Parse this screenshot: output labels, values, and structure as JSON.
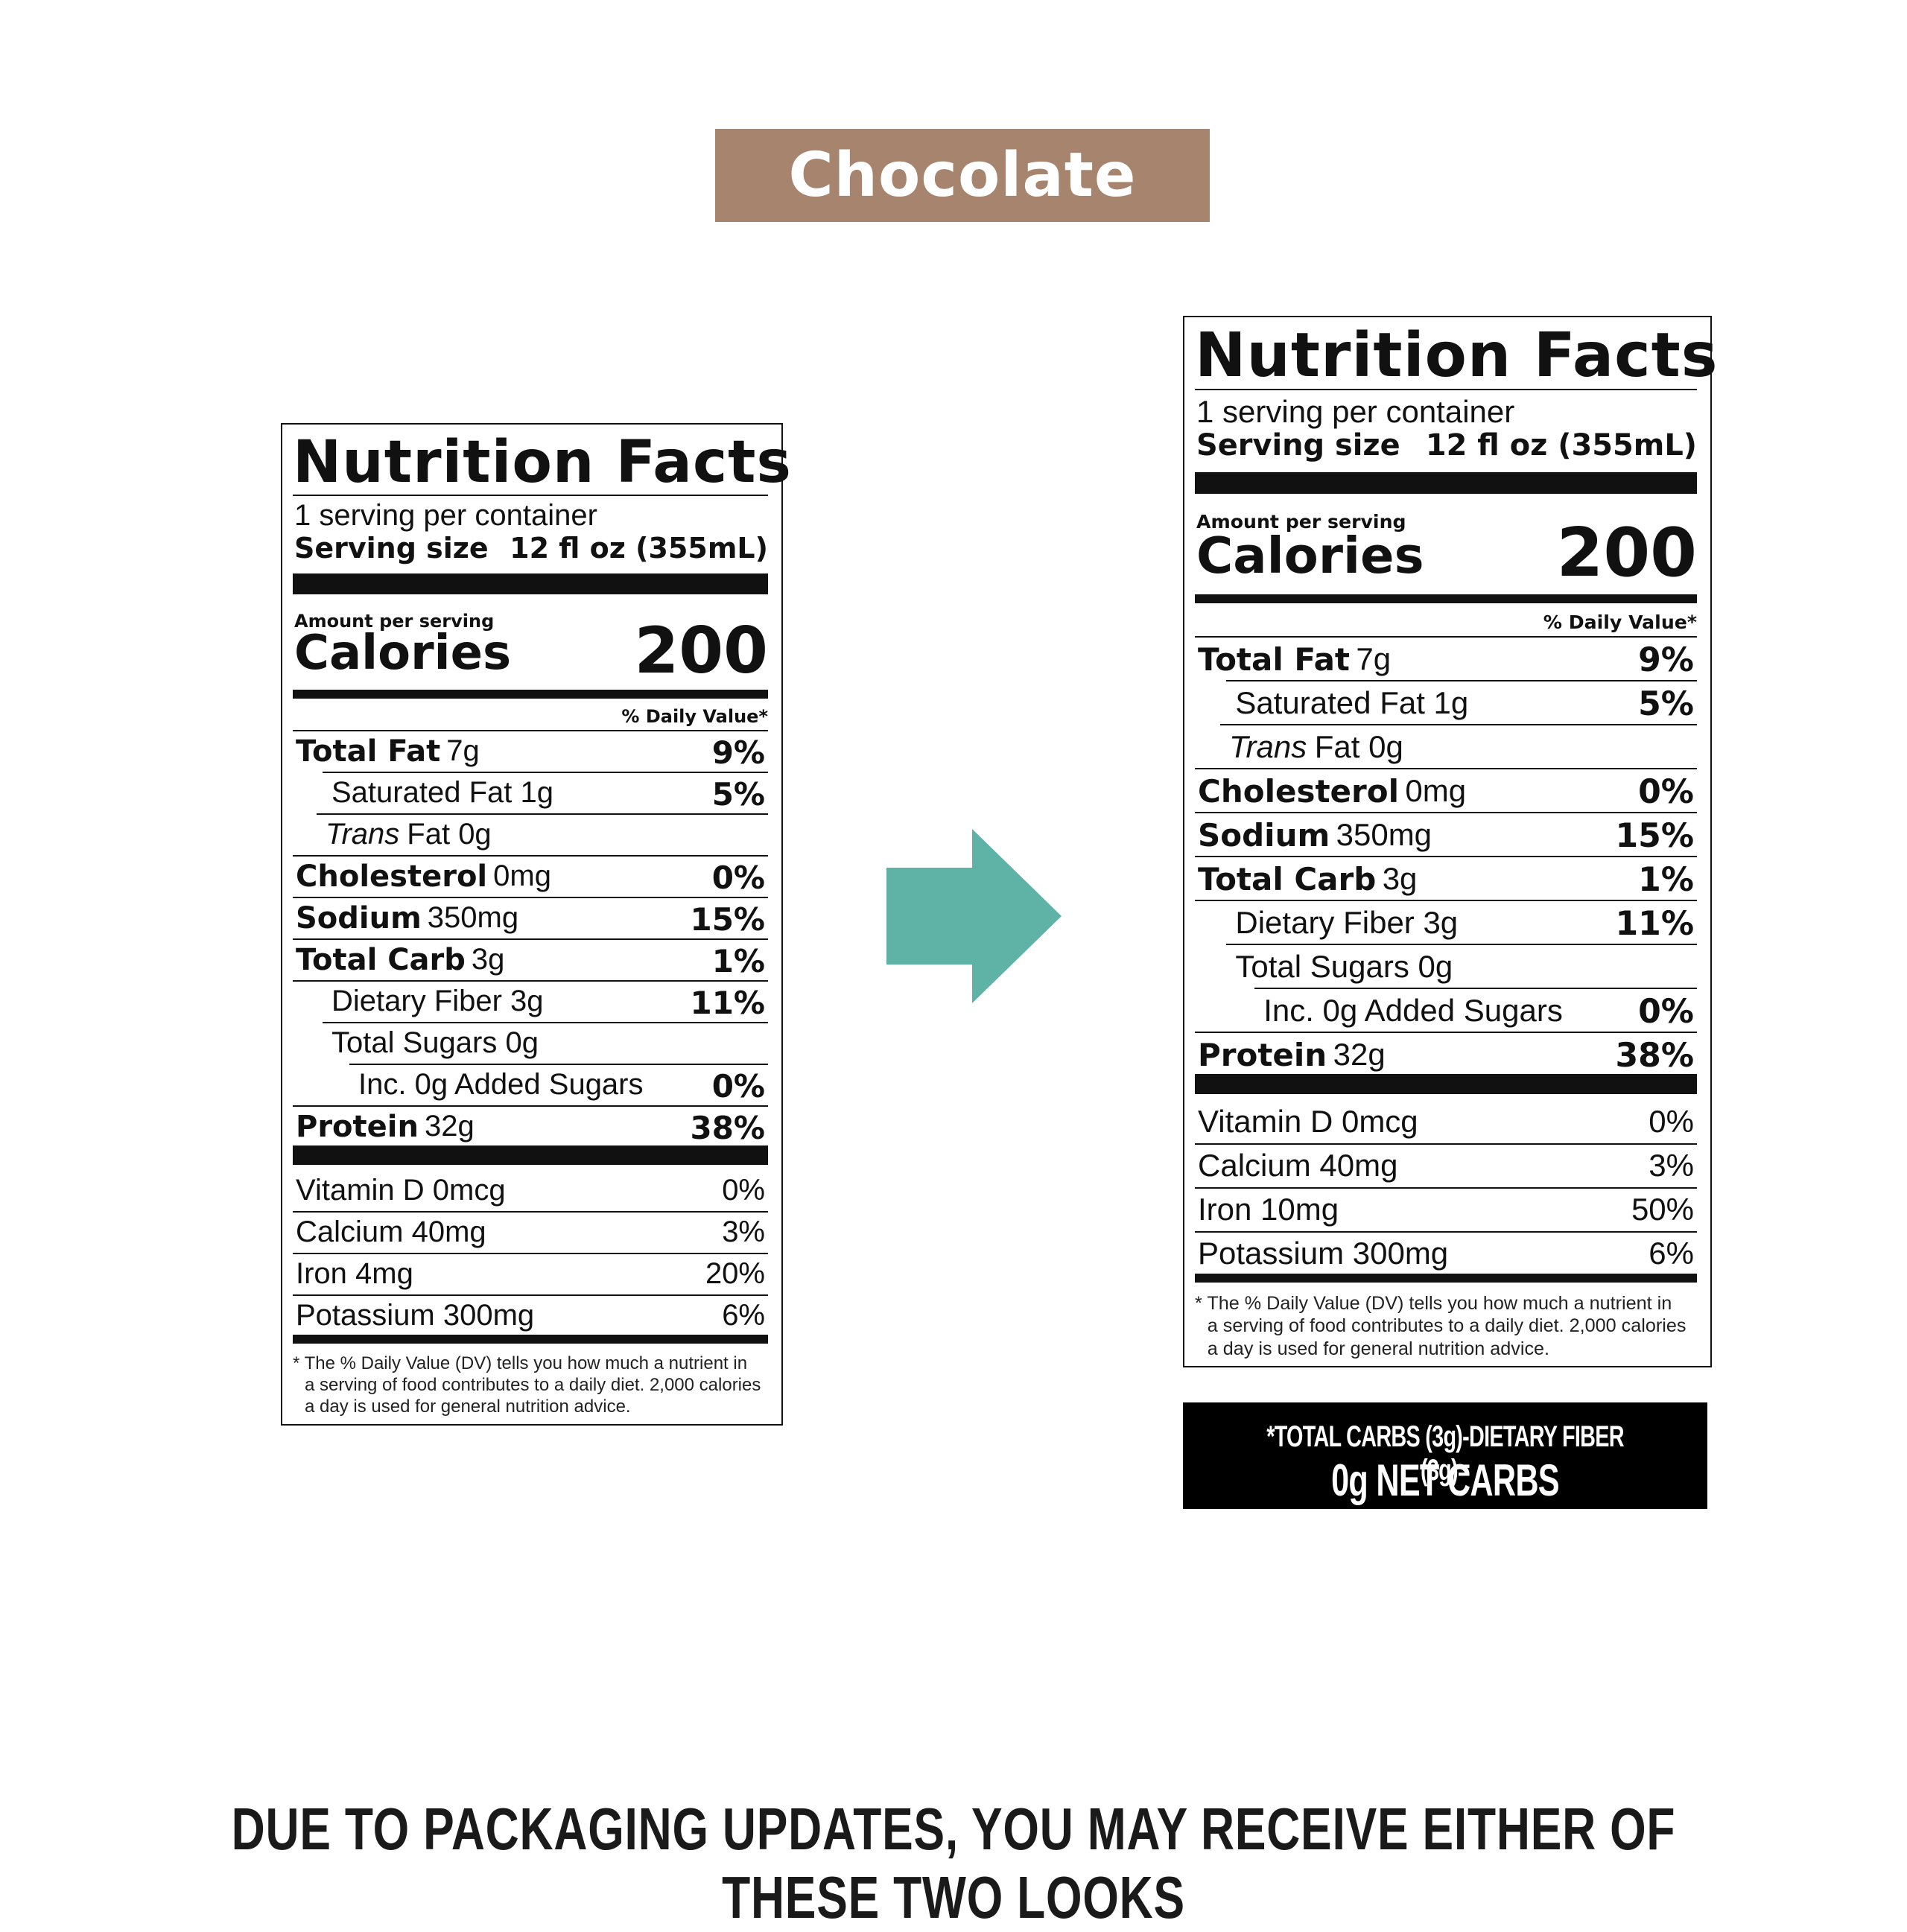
{
  "banner": {
    "text": "Chocolate",
    "color": "#a7846d"
  },
  "arrow": {
    "icon": "right-arrow-icon",
    "color": "#5fb3a6"
  },
  "labels": [
    {
      "title": "Nutrition Facts",
      "servings": "1 serving per container",
      "serving_size_label": "Serving size",
      "serving_size_value": "12 fl oz (355mL)",
      "amount_per_serving": "Amount per serving",
      "calories_label": "Calories",
      "calories_value": "200",
      "daily_value_header": "% Daily Value*",
      "nutrients": [
        {
          "bold": "Total Fat",
          "amount": "7g",
          "dv": "9%"
        },
        {
          "bold": "",
          "amount": "Saturated Fat 1g",
          "dv": "5%"
        },
        {
          "italic": "Trans",
          "amount": "Fat 0g",
          "dv": ""
        },
        {
          "bold": "Cholesterol",
          "amount": "0mg",
          "dv": "0%"
        },
        {
          "bold": "Sodium",
          "amount": "350mg",
          "dv": "15%"
        },
        {
          "bold": "Total Carb",
          "amount": "3g",
          "dv": "1%"
        },
        {
          "bold": "",
          "amount": "Dietary Fiber 3g",
          "dv": "11%"
        },
        {
          "bold": "",
          "amount": "Total Sugars 0g",
          "dv": ""
        },
        {
          "bold": "",
          "amount": "Inc. 0g Added Sugars",
          "dv": "0%"
        },
        {
          "bold": "Protein",
          "amount": "32g",
          "dv": "38%"
        }
      ],
      "vitamins": [
        {
          "name": "Vitamin D 0mcg",
          "dv": "0%"
        },
        {
          "name": "Calcium 40mg",
          "dv": "3%"
        },
        {
          "name": "Iron 4mg",
          "dv": "20%"
        },
        {
          "name": "Potassium 300mg",
          "dv": "6%"
        }
      ],
      "footnote": [
        "* The % Daily Value (DV) tells you how much a nutrient in",
        "a serving of food contributes to a daily diet. 2,000 calories",
        "a day is used for general nutrition advice."
      ]
    },
    {
      "title": "Nutrition Facts",
      "servings": "1 serving per container",
      "serving_size_label": "Serving size",
      "serving_size_value": "12 fl oz (355mL)",
      "amount_per_serving": "Amount per serving",
      "calories_label": "Calories",
      "calories_value": "200",
      "daily_value_header": "% Daily Value*",
      "nutrients": [
        {
          "bold": "Total Fat",
          "amount": "7g",
          "dv": "9%"
        },
        {
          "bold": "",
          "amount": "Saturated Fat 1g",
          "dv": "5%"
        },
        {
          "italic": "Trans",
          "amount": "Fat 0g",
          "dv": ""
        },
        {
          "bold": "Cholesterol",
          "amount": "0mg",
          "dv": "0%"
        },
        {
          "bold": "Sodium",
          "amount": "350mg",
          "dv": "15%"
        },
        {
          "bold": "Total Carb",
          "amount": "3g",
          "dv": "1%"
        },
        {
          "bold": "",
          "amount": "Dietary Fiber 3g",
          "dv": "11%"
        },
        {
          "bold": "",
          "amount": "Total Sugars 0g",
          "dv": ""
        },
        {
          "bold": "",
          "amount": "Inc. 0g Added Sugars",
          "dv": "0%"
        },
        {
          "bold": "Protein",
          "amount": "32g",
          "dv": "38%"
        }
      ],
      "vitamins": [
        {
          "name": "Vitamin D 0mcg",
          "dv": "0%"
        },
        {
          "name": "Calcium 40mg",
          "dv": "3%"
        },
        {
          "name": "Iron 10mg",
          "dv": "50%"
        },
        {
          "name": "Potassium 300mg",
          "dv": "6%"
        }
      ],
      "footnote": [
        "* The % Daily Value (DV) tells you how much a nutrient in",
        "a serving of food contributes to a daily diet. 2,000 calories",
        "a day is used for general nutrition advice."
      ]
    }
  ],
  "net_carbs": {
    "line1": "*TOTAL CARBS (3g)-DIETARY FIBER (3g)=",
    "line2": "0g NET CARBS"
  },
  "notice": "DUE TO PACKAGING UPDATES, YOU MAY RECEIVE EITHER OF THESE TWO LOOKS"
}
